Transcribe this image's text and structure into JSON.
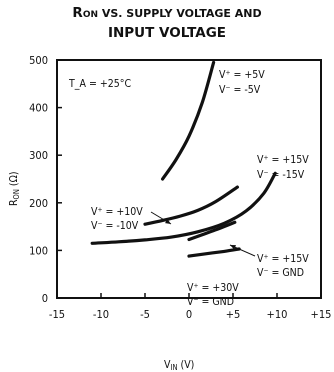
{
  "chart_data": {
    "type": "line",
    "title_main": "R",
    "title_sub": "ON",
    "title_rest": " VS. SUPPLY VOLTAGE AND",
    "title_line2": "INPUT VOLTAGE",
    "xlabel_main": "V",
    "xlabel_sub": "IN",
    "xlabel_unit": " (V)",
    "ylabel_main": "R",
    "ylabel_sub": "ON",
    "ylabel_unit": " (Ω)",
    "xlim": [
      -15,
      15
    ],
    "ylim": [
      0,
      500
    ],
    "x_ticks": [
      "-15",
      "-10",
      "-5",
      "0",
      "+5",
      "+10",
      "+15"
    ],
    "y_ticks": [
      "0",
      "100",
      "200",
      "300",
      "400",
      "500"
    ],
    "grid": false,
    "condition": "T_A = +25°C",
    "series": [
      {
        "label_lines": [
          "V⁺ = +5V",
          "V⁻ = -5V"
        ],
        "x": [
          -3.0,
          -1.5,
          0.0,
          1.5,
          2.8
        ],
        "y": [
          250,
          290,
          340,
          410,
          495
        ]
      },
      {
        "label_lines": [
          "V⁺ = +10V",
          "V⁻ = -10V"
        ],
        "x": [
          -5.0,
          -3.0,
          -1.0,
          1.0,
          3.0,
          5.5
        ],
        "y": [
          155,
          163,
          172,
          184,
          202,
          233
        ]
      },
      {
        "label_lines": [
          "V⁺ = +15V",
          "V⁻ = -15V"
        ],
        "x": [
          -11.0,
          -8.0,
          -5.0,
          -2.0,
          1.0,
          4.0,
          6.5,
          8.5,
          9.8
        ],
        "y": [
          115,
          118,
          122,
          128,
          139,
          157,
          183,
          220,
          262
        ]
      },
      {
        "label_lines": [
          "V⁺ = +15V",
          "V⁻ = GND"
        ],
        "x": [
          0.0,
          1.5,
          3.0,
          5.2
        ],
        "y": [
          123,
          133,
          143,
          159
        ]
      },
      {
        "label_lines": [
          "V⁺ = +30V",
          "V⁻ = GND"
        ],
        "x": [
          0.0,
          2.0,
          4.0,
          5.7
        ],
        "y": [
          88,
          93,
          98,
          103
        ]
      }
    ]
  }
}
